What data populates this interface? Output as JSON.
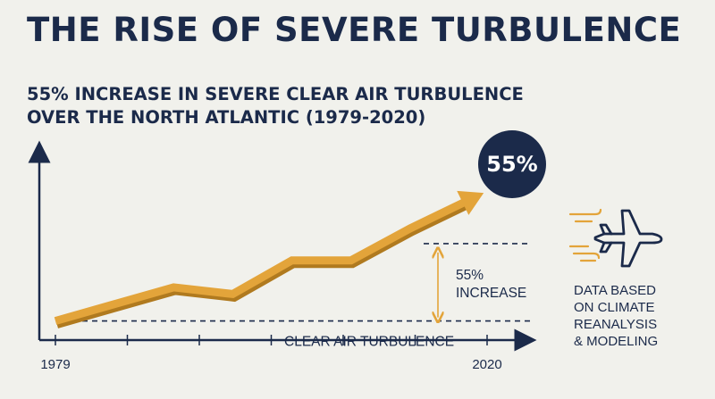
{
  "title": "THE RISE OF SEVERE TURBULENCE",
  "subtitle": {
    "line1": "55% INCREASE IN SEVERE CLEAR AIR TURBULENCE",
    "line2": "OVER THE NORTH ATLANTIC (1979-2020)"
  },
  "badge": "55%",
  "colors": {
    "navy": "#1b2a4a",
    "gold": "#e3a43a",
    "gold_dark": "#b07a1f",
    "background": "#f1f1ec"
  },
  "icons": {
    "plane": "airplane-icon",
    "wind": "wind-lines-icon"
  },
  "note": [
    "DATA BASED",
    "ON CLIMATE",
    "REANALYSIS",
    "& MODELING"
  ],
  "chart_data": {
    "type": "line",
    "x_tick_labels": [
      "1979",
      "2020"
    ],
    "x_tick_count": 7,
    "y_values": [
      0,
      1,
      2,
      1.6,
      3.6,
      3.6,
      5.5,
      7.2
    ],
    "y_range": [
      -0.5,
      9
    ],
    "baseline": {
      "value": 0,
      "label": "CLEAR AIR TURBULENCE"
    },
    "top_line": {
      "value": 4.6
    },
    "increase_label": [
      "55%",
      "INCREASE"
    ],
    "arrow_at_end": true,
    "grid": false
  }
}
